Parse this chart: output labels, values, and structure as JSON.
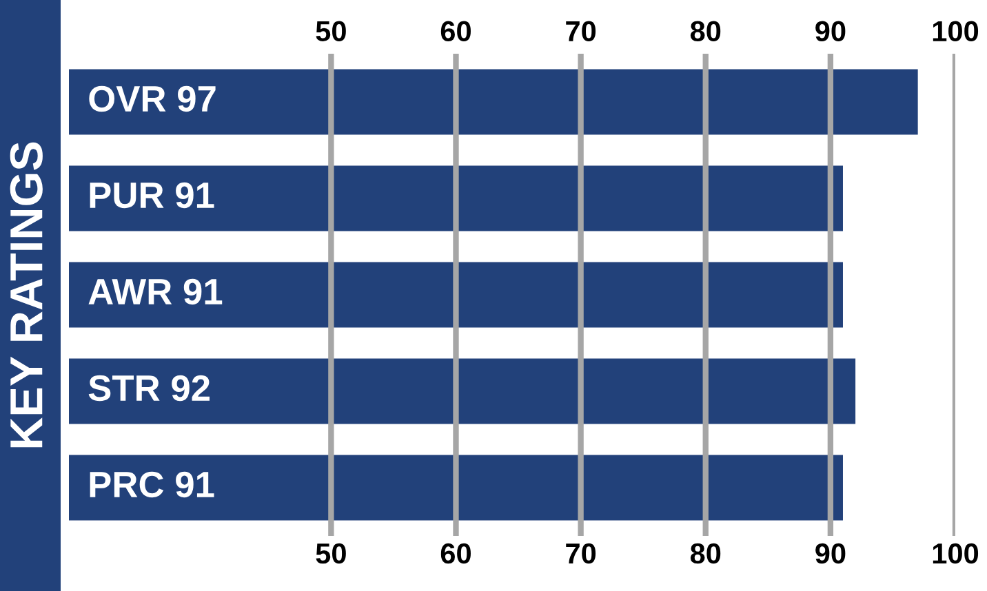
{
  "chart_data": {
    "type": "bar",
    "orientation": "horizontal",
    "title": "KEY RATINGS",
    "categories": [
      "OVR 97",
      "PUR 91",
      "AWR 91",
      "STR 92",
      "PRC 91"
    ],
    "values": [
      97,
      91,
      91,
      92,
      91
    ],
    "color": "#22417a",
    "xlim": [
      29,
      100
    ],
    "xticks": [
      50,
      60,
      70,
      80,
      90,
      100
    ],
    "x2lim": [
      29,
      100
    ],
    "x2ticks": [
      50,
      60,
      70,
      80,
      90,
      100
    ],
    "grid": "x",
    "tick_labels": "x"
  }
}
